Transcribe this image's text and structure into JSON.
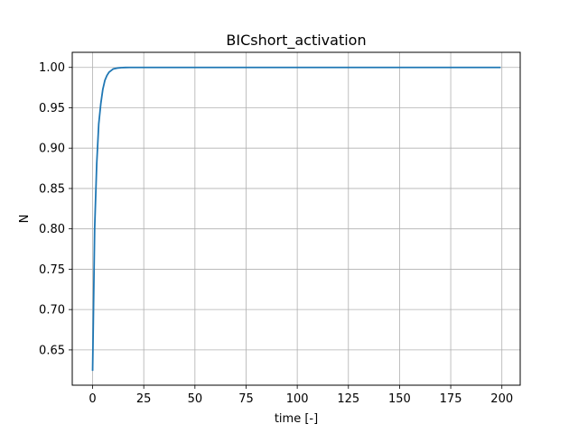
{
  "chart_data": {
    "type": "line",
    "title": "BICshort_activation",
    "xlabel": "time [-]",
    "ylabel": "N",
    "xlim": [
      -9.95,
      208.95
    ],
    "ylim": [
      0.6063,
      1.0187
    ],
    "grid": true,
    "legend": "none",
    "xticks": [
      0,
      25,
      50,
      75,
      100,
      125,
      150,
      175,
      200
    ],
    "yticks": [
      0.65,
      0.7,
      0.75,
      0.8,
      0.85,
      0.9,
      0.95,
      1.0
    ],
    "xtick_labels": [
      "0",
      "25",
      "50",
      "75",
      "100",
      "125",
      "150",
      "175",
      "200"
    ],
    "ytick_labels": [
      "0.65",
      "0.70",
      "0.75",
      "0.80",
      "0.85",
      "0.90",
      "0.95",
      "1.00"
    ],
    "series": [
      {
        "color": "#1f77b4",
        "x": [
          0,
          1,
          2,
          3,
          4,
          5,
          6,
          7,
          8,
          9,
          10,
          12,
          14,
          16,
          18,
          20,
          25,
          50,
          75,
          100,
          125,
          150,
          175,
          199
        ],
        "y": [
          0.625,
          0.8,
          0.88,
          0.93,
          0.955,
          0.973,
          0.984,
          0.99,
          0.994,
          0.996,
          0.998,
          0.9992,
          0.9997,
          0.9999,
          1.0,
          1.0,
          1.0,
          1.0,
          1.0,
          1.0,
          1.0,
          1.0,
          1.0,
          1.0
        ]
      }
    ]
  }
}
